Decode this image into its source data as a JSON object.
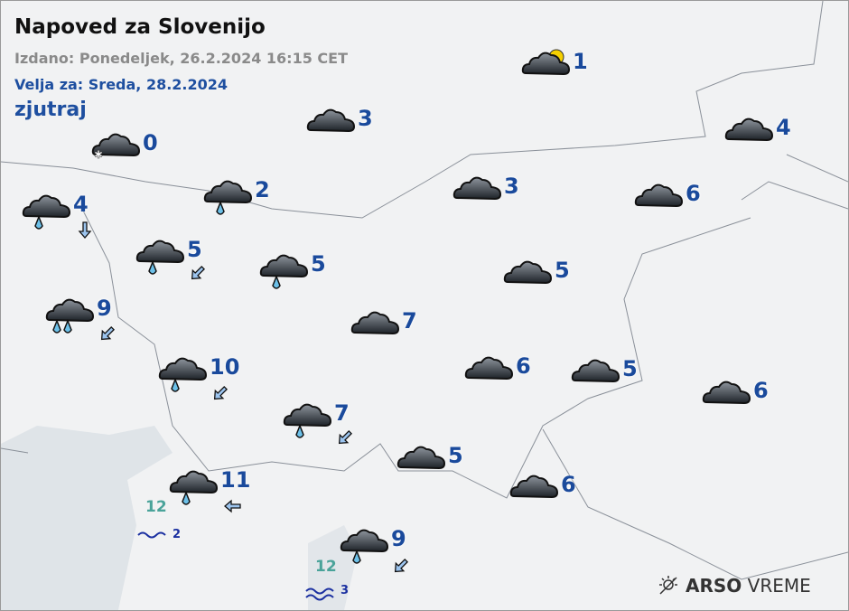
{
  "header": {
    "title": "Napoved za Slovenijo",
    "issued": "Izdano: Ponedeljek, 26.2.2024 16:15 CET",
    "valid": "Velja za: Sreda, 28.2.2024",
    "period": "zjutraj"
  },
  "stations": [
    {
      "icon": "partly-cloudy-icon",
      "temp": "1"
    },
    {
      "icon": "overcast-icon",
      "temp": "3"
    },
    {
      "icon": "overcast-light-snow-icon",
      "temp": "0"
    },
    {
      "icon": "overcast-icon",
      "temp": "4"
    },
    {
      "icon": "overcast-rain-icon",
      "temp": "4"
    },
    {
      "icon": "overcast-rain-icon",
      "temp": "2"
    },
    {
      "icon": "overcast-icon",
      "temp": "3"
    },
    {
      "icon": "overcast-icon",
      "temp": "6"
    },
    {
      "icon": "overcast-rain-icon",
      "temp": "5"
    },
    {
      "icon": "overcast-rain-icon",
      "temp": "5"
    },
    {
      "icon": "overcast-icon",
      "temp": "5"
    },
    {
      "icon": "overcast-heavy-rain-icon",
      "temp": "9"
    },
    {
      "icon": "overcast-icon",
      "temp": "7"
    },
    {
      "icon": "overcast-rain-icon",
      "temp": "10"
    },
    {
      "icon": "overcast-icon",
      "temp": "6"
    },
    {
      "icon": "overcast-icon",
      "temp": "5"
    },
    {
      "icon": "overcast-icon",
      "temp": "6"
    },
    {
      "icon": "overcast-rain-icon",
      "temp": "7"
    },
    {
      "icon": "overcast-icon",
      "temp": "5"
    },
    {
      "icon": "overcast-rain-icon",
      "temp": "11"
    },
    {
      "icon": "overcast-icon",
      "temp": "6"
    },
    {
      "icon": "overcast-rain-icon",
      "temp": "9"
    }
  ],
  "wind": [
    {
      "direction": "S"
    },
    {
      "direction": "SW"
    },
    {
      "direction": "SW"
    },
    {
      "direction": "SW"
    },
    {
      "direction": "SW"
    },
    {
      "direction": "W"
    },
    {
      "direction": "SW"
    }
  ],
  "sea": [
    {
      "temp": "12",
      "waves": "2"
    },
    {
      "temp": "12",
      "waves": "3"
    }
  ],
  "logo": {
    "brand": "ARSO",
    "product": "VREME"
  },
  "colors": {
    "temp": "#1a4a9c",
    "sea_temp": "#4aa39a",
    "waves": "#1a2fa0",
    "land": "#f1f2f3",
    "sea": "#dfe4e8"
  }
}
